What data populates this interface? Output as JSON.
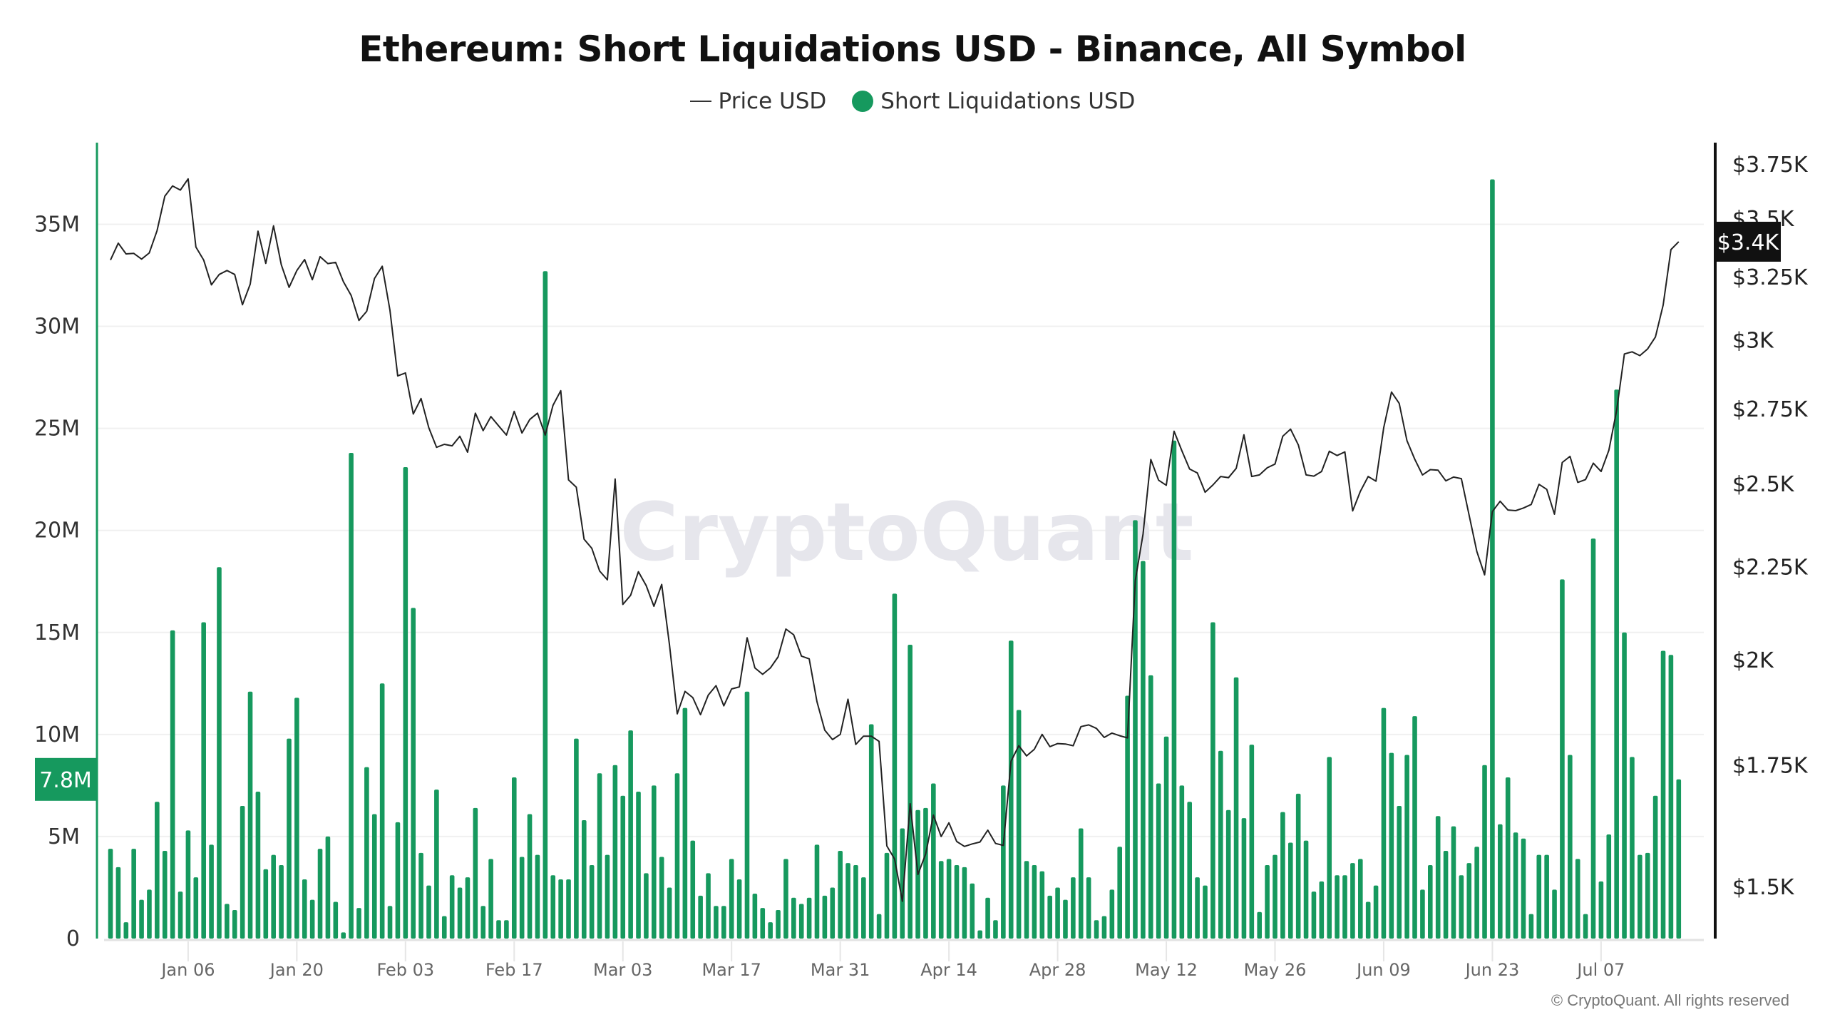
{
  "chart_data": {
    "type": "bar+line",
    "title": "Ethereum: Short Liquidations USD - Binance, All Symbol",
    "legend": {
      "placement": "top-center"
    },
    "x_range": [
      "2024-12-27",
      "2025-07-17"
    ],
    "x_frequency": "daily",
    "x_tick_labels": [
      "Jan 06",
      "Jan 20",
      "Feb 03",
      "Feb 17",
      "Mar 03",
      "Mar 17",
      "Mar 31",
      "Apr 14",
      "Apr 28",
      "May 12",
      "May 26",
      "Jun 09",
      "Jun 23",
      "Jul 07"
    ],
    "y_left": {
      "ticks": [
        0,
        5,
        10,
        15,
        20,
        25,
        30,
        35
      ],
      "tick_labels": [
        "0",
        "5M",
        "10M",
        "15M",
        "20M",
        "25M",
        "30M",
        "35M"
      ],
      "ylim": [
        0,
        39
      ],
      "unit": "M USD",
      "grid": true
    },
    "y_right": {
      "scale": "log",
      "ticks": [
        1500,
        1750,
        2000,
        2250,
        2500,
        2750,
        3000,
        3250,
        3500,
        3750
      ],
      "tick_labels": [
        "$1.5K",
        "$1.75K",
        "$2K",
        "$2.25K",
        "$2.5K",
        "$2.75K",
        "$3K",
        "$3.25K",
        "$3.5K",
        "$3.75K"
      ],
      "ylim": [
        1404,
        3853
      ]
    },
    "series": [
      {
        "name": "Short Liquidations USD",
        "type": "bar",
        "axis": "left",
        "color": "#16995e",
        "last_value_label": "7.8M",
        "values": [
          4.4,
          3.5,
          0.8,
          4.4,
          1.9,
          2.4,
          6.7,
          4.3,
          15.1,
          2.3,
          5.3,
          3.0,
          15.5,
          4.6,
          18.2,
          1.7,
          1.4,
          6.5,
          12.1,
          7.2,
          3.4,
          4.1,
          3.6,
          9.8,
          11.8,
          2.9,
          1.9,
          4.4,
          5.0,
          1.8,
          0.3,
          23.8,
          1.5,
          8.4,
          6.1,
          12.5,
          1.6,
          5.7,
          23.1,
          16.2,
          4.2,
          2.6,
          7.3,
          1.1,
          3.1,
          2.5,
          3.0,
          6.4,
          1.6,
          3.9,
          0.9,
          0.9,
          7.9,
          4.0,
          6.1,
          4.1,
          32.7,
          3.1,
          2.9,
          2.9,
          9.8,
          5.8,
          3.6,
          8.1,
          4.1,
          8.5,
          7.0,
          10.2,
          7.2,
          3.2,
          7.5,
          4.0,
          2.5,
          8.1,
          11.3,
          4.8,
          2.1,
          3.2,
          1.6,
          1.6,
          3.9,
          2.9,
          12.1,
          2.2,
          1.5,
          0.8,
          1.4,
          3.9,
          2.0,
          1.7,
          2.0,
          4.6,
          2.1,
          2.5,
          4.3,
          3.7,
          3.6,
          3.0,
          10.5,
          1.2,
          4.2,
          16.9,
          5.4,
          14.4,
          6.3,
          6.4,
          7.6,
          3.8,
          3.9,
          3.6,
          3.5,
          2.7,
          0.4,
          2.0,
          0.9,
          7.5,
          14.6,
          11.2,
          3.8,
          3.6,
          3.3,
          2.1,
          2.5,
          1.9,
          3.0,
          5.4,
          3.0,
          0.9,
          1.1,
          2.4,
          4.5,
          11.9,
          20.5,
          18.5,
          12.9,
          7.6,
          9.9,
          24.4,
          7.5,
          6.7,
          3.0,
          2.6,
          15.5,
          9.2,
          6.3,
          12.8,
          5.9,
          9.5,
          1.3,
          3.6,
          4.1,
          6.2,
          4.7,
          7.1,
          4.8,
          2.3,
          2.8,
          8.9,
          3.1,
          3.1,
          3.7,
          3.9,
          1.8,
          2.6,
          11.3,
          9.1,
          6.5,
          9.0,
          10.9,
          2.4,
          3.6,
          6.0,
          4.3,
          5.5,
          3.1,
          3.7,
          4.5,
          8.5,
          37.2,
          5.6,
          7.9,
          5.2,
          4.9,
          1.2,
          4.1,
          4.1,
          2.4,
          17.6,
          9.0,
          3.9,
          1.2,
          19.6,
          2.8,
          5.1,
          26.9,
          15.0,
          8.9,
          4.1,
          4.2,
          7.0,
          14.1,
          13.9,
          7.8
        ]
      },
      {
        "name": "Price USD",
        "type": "line",
        "axis": "right",
        "color": "#222222",
        "last_value_label": "$3.4K",
        "values": [
          3320,
          3392,
          3346,
          3348,
          3324,
          3350,
          3446,
          3600,
          3647,
          3628,
          3680,
          3375,
          3320,
          3217,
          3260,
          3276,
          3260,
          3137,
          3220,
          3444,
          3306,
          3467,
          3300,
          3207,
          3276,
          3322,
          3238,
          3334,
          3305,
          3310,
          3230,
          3174,
          3075,
          3111,
          3243,
          3294,
          3115,
          2866,
          2877,
          2731,
          2785,
          2684,
          2618,
          2628,
          2623,
          2655,
          2602,
          2734,
          2674,
          2722,
          2690,
          2659,
          2740,
          2666,
          2712,
          2734,
          2659,
          2761,
          2813,
          2512,
          2489,
          2330,
          2303,
          2238,
          2213,
          2515,
          2145,
          2170,
          2236,
          2197,
          2140,
          2200,
          2038,
          1867,
          1921,
          1906,
          1865,
          1912,
          1935,
          1886,
          1927,
          1932,
          2056,
          1979,
          1963,
          1979,
          2007,
          2079,
          2064,
          2009,
          2002,
          1896,
          1829,
          1807,
          1819,
          1902,
          1796,
          1815,
          1815,
          1803,
          1579,
          1553,
          1472,
          1666,
          1523,
          1563,
          1642,
          1598,
          1626,
          1588,
          1578,
          1583,
          1587,
          1611,
          1584,
          1580,
          1758,
          1793,
          1770,
          1785,
          1819,
          1791,
          1798,
          1797,
          1793,
          1837,
          1841,
          1833,
          1812,
          1822,
          1816,
          1811,
          2211,
          2345,
          2578,
          2511,
          2495,
          2672,
          2607,
          2547,
          2534,
          2473,
          2496,
          2523,
          2519,
          2549,
          2660,
          2523,
          2528,
          2551,
          2563,
          2655,
          2679,
          2626,
          2528,
          2524,
          2539,
          2605,
          2591,
          2603,
          2415,
          2476,
          2523,
          2508,
          2684,
          2808,
          2768,
          2640,
          2579,
          2528,
          2545,
          2543,
          2509,
          2521,
          2516,
          2402,
          2294,
          2227,
          2413,
          2445,
          2418,
          2416,
          2424,
          2435,
          2498,
          2482,
          2405,
          2568,
          2588,
          2504,
          2513,
          2566,
          2539,
          2608,
          2743,
          2947,
          2955,
          2941,
          2966,
          3011,
          3136,
          3364,
          3398
        ]
      }
    ],
    "watermark": "CryptoQuant"
  },
  "legend_items": {
    "price": "Price USD",
    "liq": "Short Liquidations USD"
  },
  "copyright": "© CryptoQuant. All rights reserved"
}
